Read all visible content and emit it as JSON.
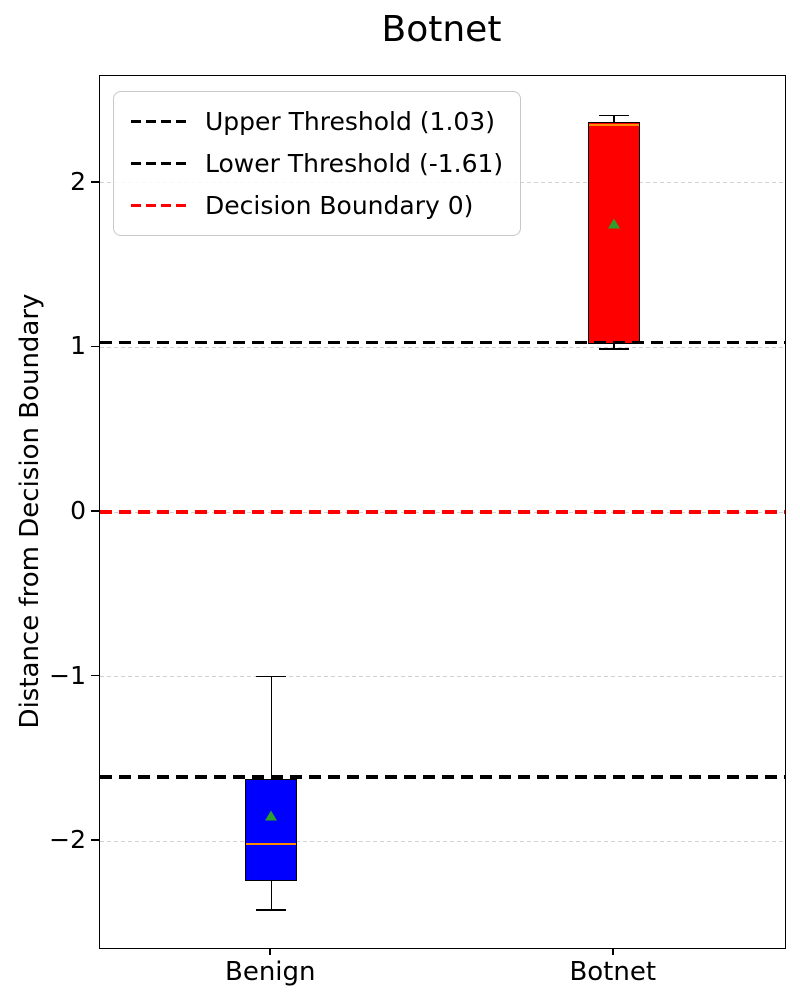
{
  "title": "Botnet",
  "axes": {
    "ylabel": "Distance from Decision Boundary",
    "xtick_labels": [
      "Benign",
      "Botnet"
    ],
    "ytick_labels": [
      "2",
      "1",
      "0",
      "−1",
      "−2"
    ]
  },
  "legend": {
    "items": [
      {
        "label": "Upper Threshold (1.03)",
        "color": "#000000",
        "style": "dashed"
      },
      {
        "label": "Lower Threshold (-1.61)",
        "color": "#000000",
        "style": "dashed"
      },
      {
        "label": "Decision Boundary 0)",
        "color": "#ff0000",
        "style": "dashed"
      }
    ]
  },
  "chart_data": {
    "type": "boxplot",
    "title": "Botnet",
    "ylabel": "Distance from Decision Boundary",
    "categories": [
      "Benign",
      "Botnet"
    ],
    "positions": [
      1,
      2
    ],
    "xlim": [
      0.5,
      2.5
    ],
    "ylim": [
      -2.65,
      2.65
    ],
    "grid": true,
    "yticks": [
      {
        "value": 2,
        "label": "2"
      },
      {
        "value": 1,
        "label": "1"
      },
      {
        "value": 0,
        "label": "0"
      },
      {
        "value": -1,
        "label": "−1"
      },
      {
        "value": -2,
        "label": "−2"
      }
    ],
    "series": [
      {
        "name": "Benign",
        "position": 1,
        "whisker_low": -2.42,
        "q1": -2.24,
        "median": -2.01,
        "q3": -1.62,
        "whisker_high": -1.0,
        "mean": -1.85,
        "box_color": "#0000ff"
      },
      {
        "name": "Botnet",
        "position": 2,
        "whisker_low": 0.99,
        "q1": 1.02,
        "median": 2.36,
        "q3": 2.37,
        "whisker_high": 2.41,
        "mean": 1.75,
        "box_color": "#ff0000"
      }
    ],
    "reference_lines": [
      {
        "name": "upper-threshold",
        "label": "Upper Threshold (1.03)",
        "value": 1.03,
        "color": "#000000",
        "style": "dashed"
      },
      {
        "name": "lower-threshold",
        "label": "Lower Threshold (-1.61)",
        "value": -1.61,
        "color": "#000000",
        "style": "dashed"
      },
      {
        "name": "decision-boundary",
        "label": "Decision Boundary 0)",
        "value": 0,
        "color": "#ff0000",
        "style": "dashed"
      }
    ],
    "median_color": "#ff8c00",
    "mean_marker_color": "#2ca02c",
    "gridline_color": "#d2d2d2"
  }
}
